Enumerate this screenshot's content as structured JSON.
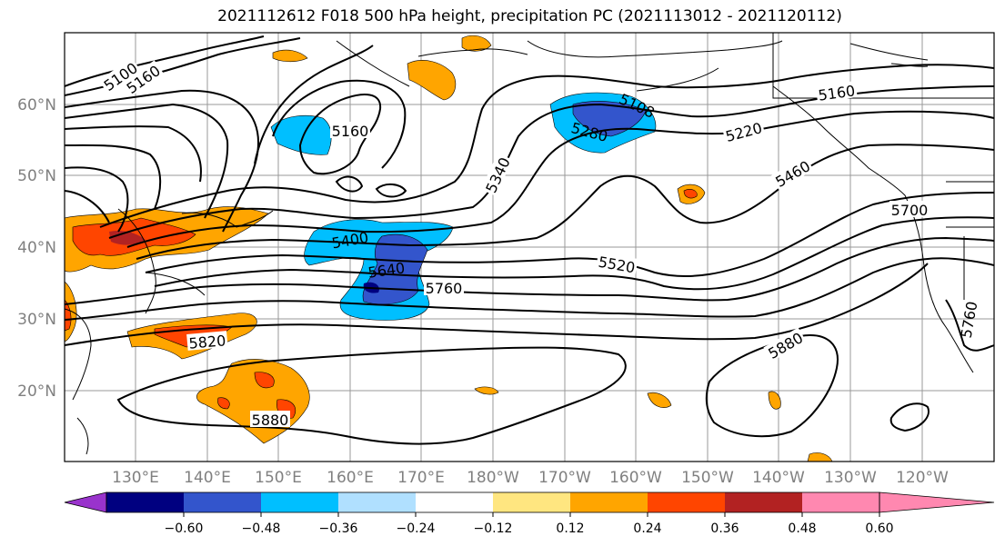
{
  "title": "2021112612 F018 500 hPa height, precipitation PC (2021113012 - 2021120112)",
  "map": {
    "lat_labels": [
      "60°N",
      "50°N",
      "40°N",
      "30°N",
      "20°N"
    ],
    "lon_labels": [
      "130°E",
      "140°E",
      "150°E",
      "160°E",
      "170°E",
      "180°W",
      "170°W",
      "160°W",
      "150°W",
      "140°W",
      "130°W",
      "120°W"
    ],
    "contour_labels": [
      "5100",
      "5160",
      "5160",
      "5108",
      "5280",
      "5220",
      "5160",
      "5460",
      "5700",
      "5340",
      "5400",
      "5640",
      "5760",
      "5520",
      "5820",
      "5880",
      "5880",
      "5760"
    ]
  },
  "colorbar": {
    "colors": [
      "#9933cc",
      "#000080",
      "#3355cc",
      "#00bfff",
      "#b0e0ff",
      "#ffffff",
      "#ffe680",
      "#ffa500",
      "#ff4500",
      "#b22222",
      "#ff88b0"
    ],
    "ticks": [
      "−0.60",
      "−0.48",
      "−0.36",
      "−0.24",
      "−0.12",
      "0.12",
      "0.24",
      "0.36",
      "0.48",
      "0.60"
    ]
  }
}
